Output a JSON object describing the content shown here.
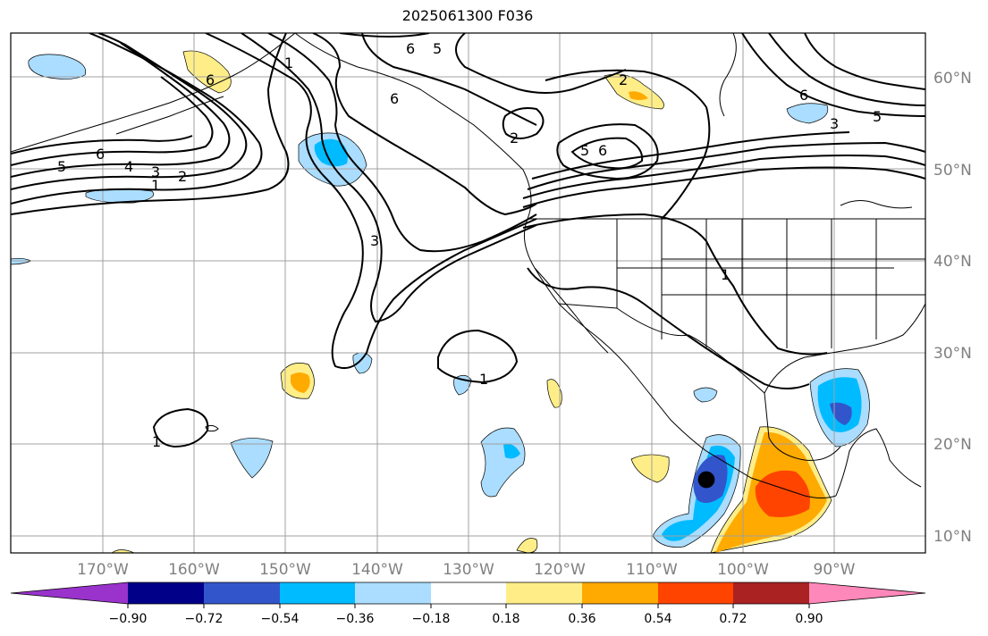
{
  "title": "2025061300 F036",
  "map": {
    "lat_labels": [
      "60°N",
      "50°N",
      "40°N",
      "30°N",
      "20°N",
      "10°N"
    ],
    "lon_labels": [
      "170°W",
      "160°W",
      "150°W",
      "140°W",
      "130°W",
      "120°W",
      "110°W",
      "100°W",
      "90°W"
    ],
    "contour_labels": [
      "6",
      "5",
      "1",
      "2",
      "6",
      "5",
      "6",
      "4",
      "3",
      "1",
      "2",
      "5",
      "6",
      "2",
      "6",
      "5",
      "3",
      "1",
      "1",
      "1",
      "6",
      "3"
    ]
  },
  "colorbar": {
    "colors": [
      "#9933cc",
      "#000088",
      "#3355cc",
      "#00bbff",
      "#aaddff",
      "#ffffff",
      "#ffee88",
      "#ffaa00",
      "#ff4400",
      "#aa2222",
      "#ff88bb"
    ],
    "tick_labels": [
      "−0.90",
      "−0.72",
      "−0.54",
      "−0.36",
      "−0.18",
      "0.18",
      "0.36",
      "0.54",
      "0.72",
      "0.90"
    ]
  }
}
